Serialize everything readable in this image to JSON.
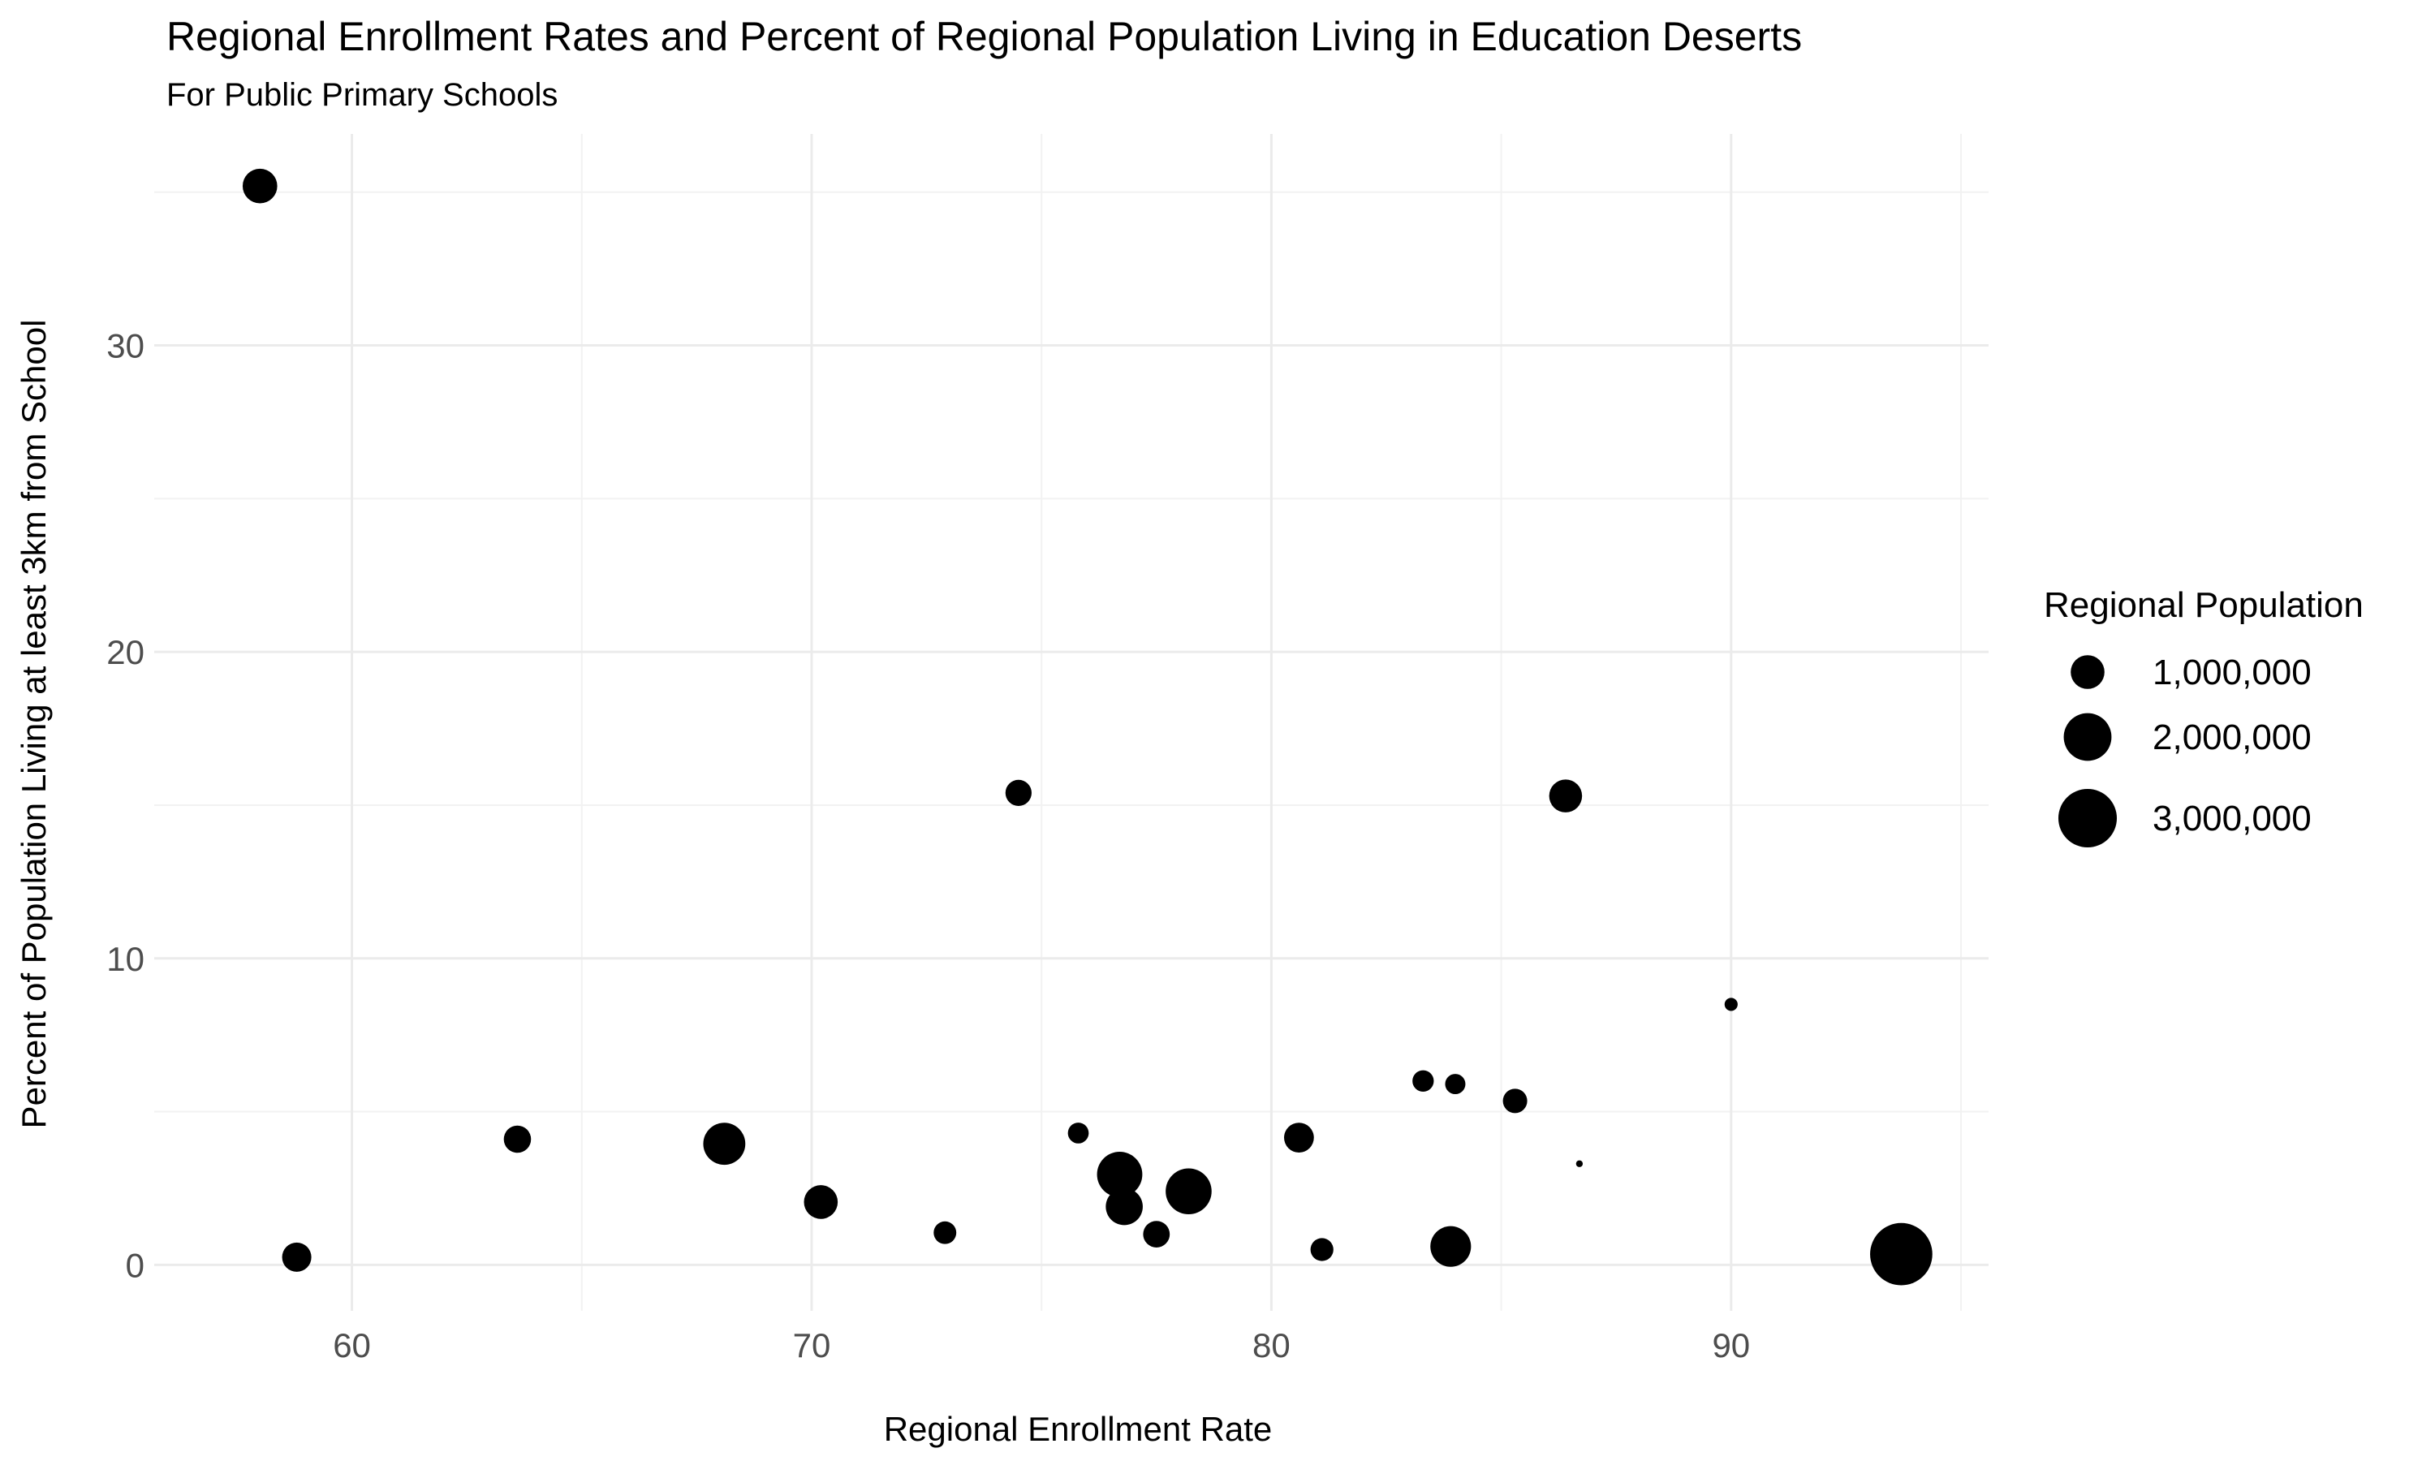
{
  "chart_data": {
    "type": "scatter",
    "title": "Regional Enrollment Rates and Percent of Regional Population Living in Education Deserts",
    "subtitle": "For Public Primary Schools",
    "xlabel": "Regional Enrollment Rate",
    "ylabel": "Percent of Population Living at least 3km from School",
    "xlim": [
      55.7,
      95.6
    ],
    "ylim": [
      -1.5,
      36.9
    ],
    "x_ticks": [
      60,
      70,
      80,
      90
    ],
    "y_ticks": [
      0,
      10,
      20,
      30
    ],
    "x_tick_labels": [
      "60",
      "70",
      "80",
      "90"
    ],
    "y_tick_labels": [
      "0",
      "10",
      "20",
      "30"
    ],
    "grid": true,
    "legend": {
      "title": "Regional Population",
      "position": "right",
      "entries": [
        {
          "label": "1,000,000",
          "value": 1000000
        },
        {
          "label": "2,000,000",
          "value": 2000000
        },
        {
          "label": "3,000,000",
          "value": 3000000
        }
      ]
    },
    "points": [
      {
        "x": 58.0,
        "y": 35.2,
        "population": 1050000
      },
      {
        "x": 58.8,
        "y": 0.25,
        "population": 750000
      },
      {
        "x": 63.6,
        "y": 4.1,
        "population": 650000
      },
      {
        "x": 68.1,
        "y": 3.95,
        "population": 1550000
      },
      {
        "x": 70.2,
        "y": 2.05,
        "population": 1000000
      },
      {
        "x": 72.9,
        "y": 1.05,
        "population": 450000
      },
      {
        "x": 74.5,
        "y": 15.4,
        "population": 600000
      },
      {
        "x": 75.8,
        "y": 4.3,
        "population": 380000
      },
      {
        "x": 76.7,
        "y": 2.95,
        "population": 1800000
      },
      {
        "x": 76.8,
        "y": 1.9,
        "population": 1200000
      },
      {
        "x": 77.5,
        "y": 1.0,
        "population": 620000
      },
      {
        "x": 78.2,
        "y": 2.4,
        "population": 1850000
      },
      {
        "x": 80.6,
        "y": 4.15,
        "population": 780000
      },
      {
        "x": 81.1,
        "y": 0.5,
        "population": 460000
      },
      {
        "x": 83.3,
        "y": 6.0,
        "population": 400000
      },
      {
        "x": 83.9,
        "y": 0.6,
        "population": 1450000
      },
      {
        "x": 84.0,
        "y": 5.9,
        "population": 360000
      },
      {
        "x": 85.3,
        "y": 5.35,
        "population": 520000
      },
      {
        "x": 86.4,
        "y": 15.3,
        "population": 950000
      },
      {
        "x": 86.7,
        "y": 3.3,
        "population": 40000
      },
      {
        "x": 90.0,
        "y": 8.5,
        "population": 150000
      },
      {
        "x": 93.7,
        "y": 0.35,
        "population": 3400000
      }
    ]
  }
}
